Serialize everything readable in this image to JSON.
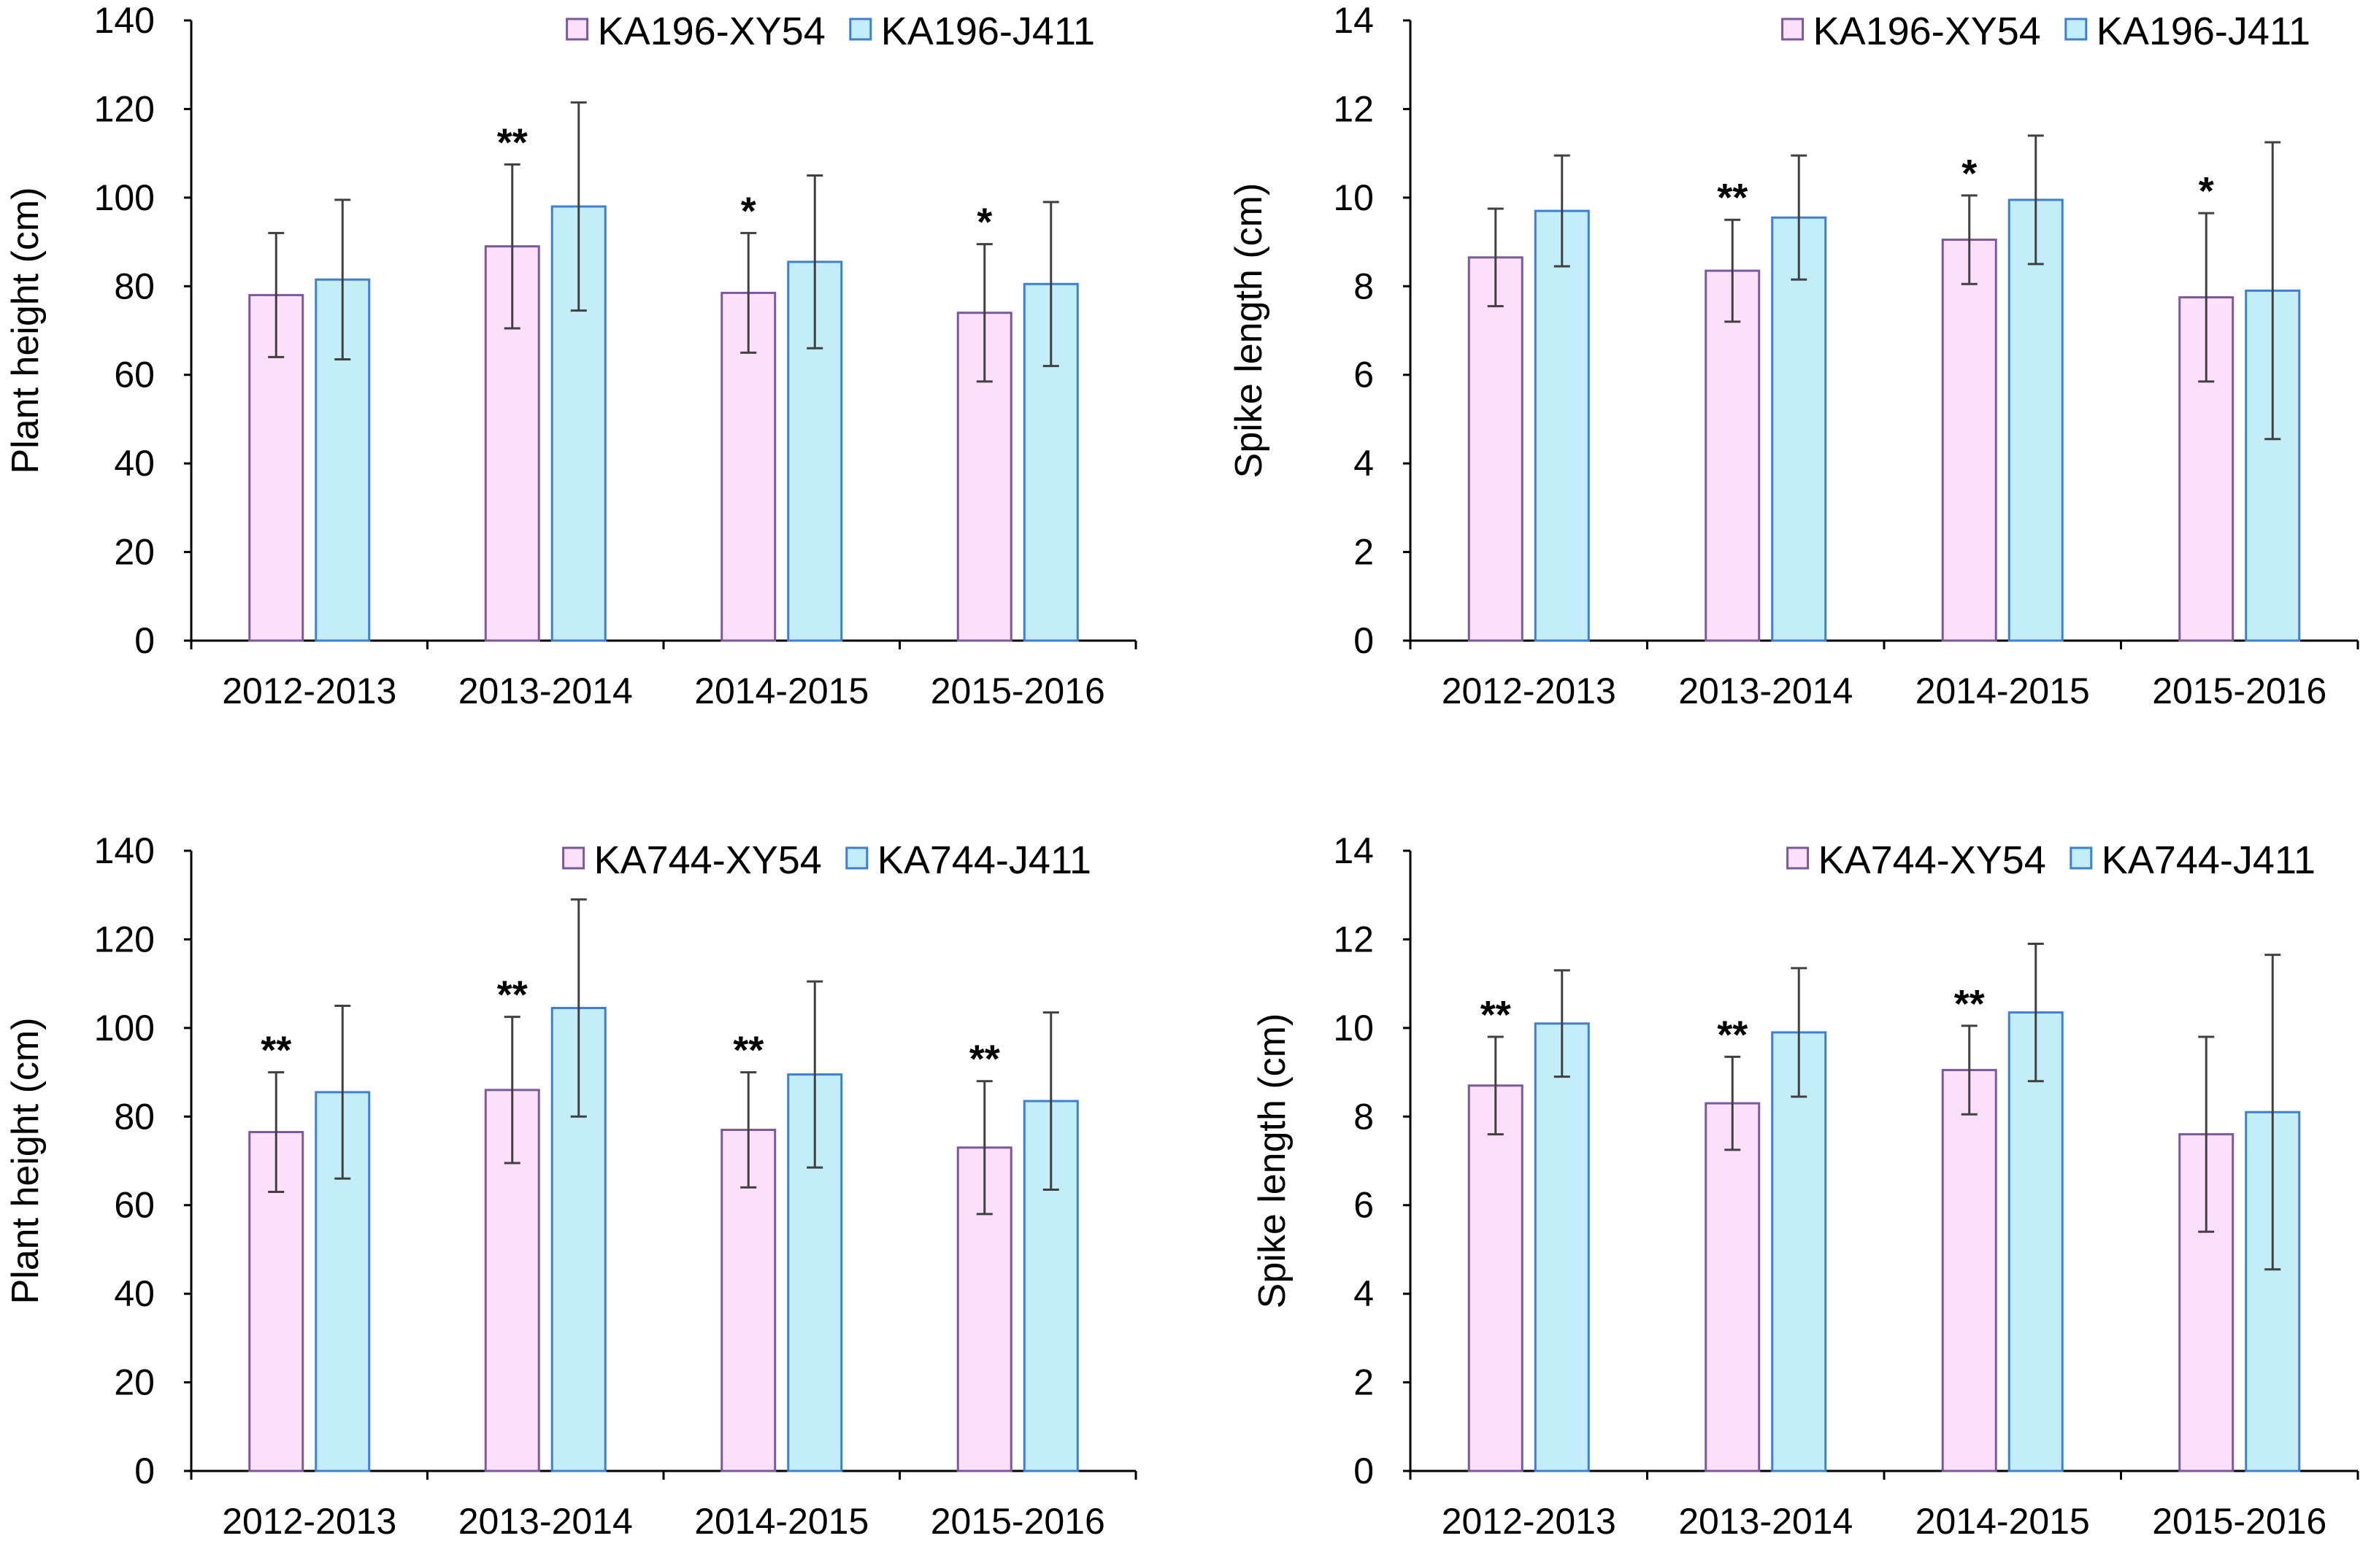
{
  "colors": {
    "xy54_fill": "#fbdffb",
    "xy54_edge": "#7a5a9a",
    "j411_fill": "#c4edfa",
    "j411_edge": "#3f7fcf",
    "axis": "#000000",
    "error_bar": "#404040"
  },
  "chart_data": [
    {
      "type": "bar",
      "ylabel": "Plant height (cm)",
      "ylim": [
        0,
        140
      ],
      "yticks": [
        "0",
        "20",
        "40",
        "60",
        "80",
        "100",
        "120",
        "140"
      ],
      "categories": [
        "2012-2013",
        "2013-2014",
        "2014-2015",
        "2015-2016"
      ],
      "legend_position": "top-right",
      "series": [
        {
          "name": "KA196-XY54",
          "values": [
            78,
            89,
            78.5,
            74
          ],
          "errors": [
            14,
            18.5,
            13.5,
            15.5
          ]
        },
        {
          "name": "KA196-J411",
          "values": [
            81.5,
            98,
            85.5,
            80.5
          ],
          "errors": [
            18,
            23.5,
            19.5,
            18.5
          ]
        }
      ],
      "significance": [
        "",
        "**",
        "*",
        "*"
      ]
    },
    {
      "type": "bar",
      "ylabel": "Spike length (cm)",
      "ylim": [
        0,
        14
      ],
      "yticks": [
        "0",
        "2",
        "4",
        "6",
        "8",
        "10",
        "12",
        "14"
      ],
      "categories": [
        "2012-2013",
        "2013-2014",
        "2014-2015",
        "2015-2016"
      ],
      "legend_position": "top-right",
      "series": [
        {
          "name": "KA196-XY54",
          "values": [
            8.65,
            8.35,
            9.05,
            7.75
          ],
          "errors": [
            1.1,
            1.15,
            1.0,
            1.9
          ]
        },
        {
          "name": "KA196-J411",
          "values": [
            9.7,
            9.55,
            9.95,
            7.9
          ],
          "errors": [
            1.25,
            1.4,
            1.45,
            3.35
          ]
        }
      ],
      "significance": [
        "",
        "**",
        "*",
        "*"
      ]
    },
    {
      "type": "bar",
      "ylabel": "Plant height (cm)",
      "ylim": [
        0,
        140
      ],
      "yticks": [
        "0",
        "20",
        "40",
        "60",
        "80",
        "100",
        "120",
        "140"
      ],
      "categories": [
        "2012-2013",
        "2013-2014",
        "2014-2015",
        "2015-2016"
      ],
      "legend_position": "top-right",
      "series": [
        {
          "name": "KA744-XY54",
          "values": [
            76.5,
            86,
            77,
            73
          ],
          "errors": [
            13.5,
            16.5,
            13,
            15
          ]
        },
        {
          "name": "KA744-J411",
          "values": [
            85.5,
            104.5,
            89.5,
            83.5
          ],
          "errors": [
            19.5,
            24.5,
            21,
            20
          ]
        }
      ],
      "significance": [
        "**",
        "**",
        "**",
        "**"
      ]
    },
    {
      "type": "bar",
      "ylabel": "Spike length (cm)",
      "ylim": [
        0,
        14
      ],
      "yticks": [
        "0",
        "2",
        "4",
        "6",
        "8",
        "10",
        "12",
        "14"
      ],
      "categories": [
        "2012-2013",
        "2013-2014",
        "2014-2015",
        "2015-2016"
      ],
      "legend_position": "top-right",
      "series": [
        {
          "name": "KA744-XY54",
          "values": [
            8.7,
            8.3,
            9.05,
            7.6
          ],
          "errors": [
            1.1,
            1.05,
            1.0,
            2.2
          ]
        },
        {
          "name": "KA744-J411",
          "values": [
            10.1,
            9.9,
            10.35,
            8.1
          ],
          "errors": [
            1.2,
            1.45,
            1.55,
            3.55
          ]
        }
      ],
      "significance": [
        "**",
        "**",
        "**",
        ""
      ]
    }
  ]
}
